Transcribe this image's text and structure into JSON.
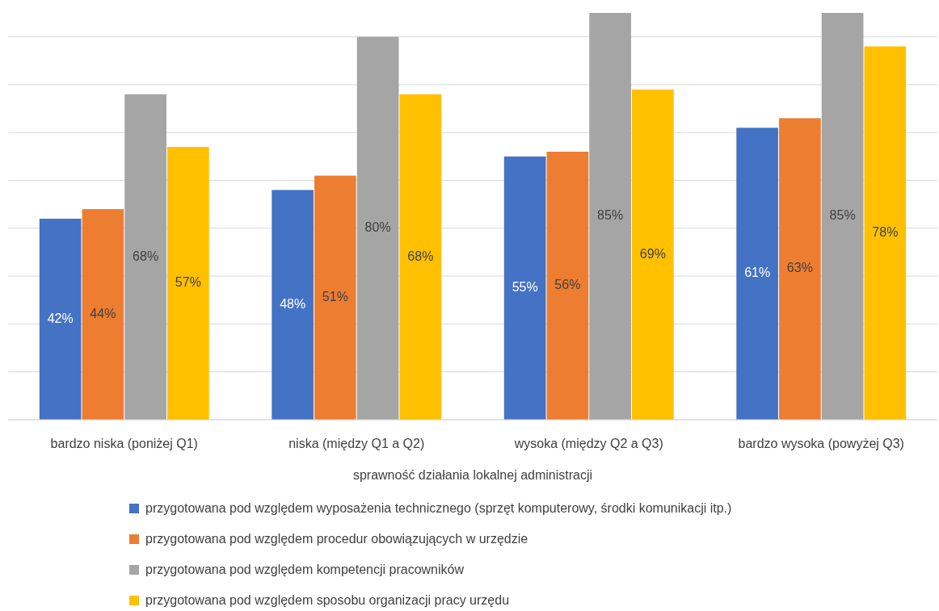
{
  "chart_data": {
    "type": "bar",
    "xlabel": "sprawność działania lokalnej administracji",
    "categories": [
      "bardzo niska (poniżej Q1)",
      "niska (między Q1 a Q2)",
      "wysoka (między Q2 a Q3)",
      "bardzo wysoka (powyżej Q3)"
    ],
    "series": [
      {
        "name": "przygotowana pod względem wyposażenia technicznego (sprzęt komputerowy, środki komunikacji itp.)",
        "color": "#4472c4",
        "values": [
          42,
          48,
          55,
          61
        ],
        "value_labels": [
          "42%",
          "48%",
          "55%",
          "61%"
        ]
      },
      {
        "name": "przygotowana pod względem procedur obowiązujących w urzędzie",
        "color": "#ed7d31",
        "values": [
          44,
          51,
          56,
          63
        ],
        "value_labels": [
          "44%",
          "51%",
          "56%",
          "63%"
        ]
      },
      {
        "name": "przygotowana pod względem kompetencji pracowników",
        "color": "#a5a5a5",
        "values": [
          68,
          80,
          85,
          85
        ],
        "value_labels": [
          "68%",
          "80%",
          "85%",
          "85%"
        ]
      },
      {
        "name": "przygotowana pod względem sposobu organizacji pracy urzędu",
        "color": "#ffc000",
        "values": [
          57,
          68,
          69,
          78
        ],
        "value_labels": [
          "57%",
          "68%",
          "69%",
          "78%"
        ]
      }
    ],
    "grid": "y",
    "tick_labels": "x",
    "legend": "bottom"
  }
}
